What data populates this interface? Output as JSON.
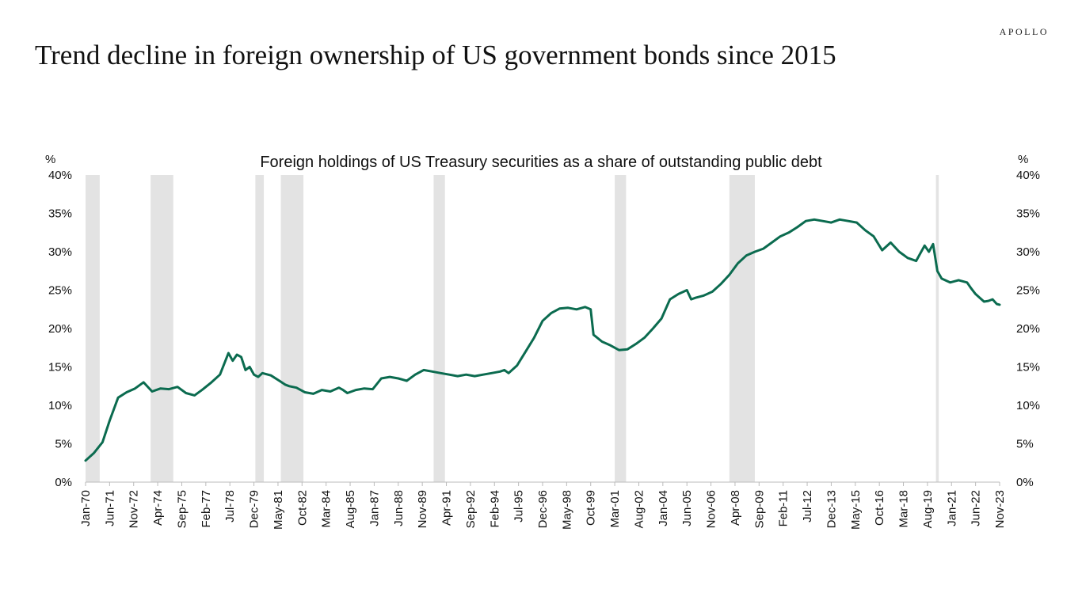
{
  "brand": "APOLLO",
  "title": "Trend decline in foreign ownership of US government bonds since 2015",
  "chart_data": {
    "type": "line",
    "title": "Foreign holdings of US Treasury securities as a share of outstanding public debt",
    "ylabel_left": "%",
    "ylabel_right": "%",
    "ylim": [
      0,
      40
    ],
    "y_ticks": [
      "0%",
      "5%",
      "10%",
      "15%",
      "20%",
      "25%",
      "30%",
      "35%",
      "40%"
    ],
    "x_range": [
      "1970-01",
      "2023-11"
    ],
    "x_ticks": [
      "Jan-70",
      "Jun-71",
      "Nov-72",
      "Apr-74",
      "Sep-75",
      "Feb-77",
      "Jul-78",
      "Dec-79",
      "May-81",
      "Oct-82",
      "Mar-84",
      "Aug-85",
      "Jan-87",
      "Jun-88",
      "Nov-89",
      "Apr-91",
      "Sep-92",
      "Feb-94",
      "Jul-95",
      "Dec-96",
      "May-98",
      "Oct-99",
      "Mar-01",
      "Aug-02",
      "Jan-04",
      "Jun-05",
      "Nov-06",
      "Apr-08",
      "Sep-09",
      "Feb-11",
      "Jul-12",
      "Dec-13",
      "May-15",
      "Oct-16",
      "Mar-18",
      "Aug-19",
      "Jan-21",
      "Jun-22",
      "Nov-23"
    ],
    "grid": false,
    "line_color": "#0b6b4f",
    "recession_color": "#e3e3e3",
    "recessions": [
      [
        "1970-01",
        "1970-11"
      ],
      [
        "1973-11",
        "1975-03"
      ],
      [
        "1980-01",
        "1980-07"
      ],
      [
        "1981-07",
        "1982-11"
      ],
      [
        "1990-07",
        "1991-03"
      ],
      [
        "2001-03",
        "2001-11"
      ],
      [
        "2007-12",
        "2009-06"
      ],
      [
        "2020-02",
        "2020-04"
      ]
    ],
    "series": [
      {
        "x": [
          "1970-01",
          "1970-07",
          "1971-01",
          "1971-06",
          "1971-12",
          "1972-06",
          "1972-12",
          "1973-06",
          "1973-12",
          "1974-06",
          "1974-12",
          "1975-06",
          "1975-12",
          "1976-06",
          "1976-12",
          "1977-06",
          "1977-12",
          "1978-06",
          "1978-09",
          "1978-12",
          "1979-03",
          "1979-06",
          "1979-09",
          "1979-12",
          "1980-03",
          "1980-06",
          "1980-12",
          "1981-06",
          "1981-10",
          "1982-01",
          "1982-06",
          "1982-12",
          "1983-06",
          "1983-12",
          "1984-06",
          "1984-12",
          "1985-03",
          "1985-06",
          "1985-12",
          "1986-06",
          "1986-12",
          "1987-06",
          "1987-12",
          "1988-06",
          "1988-12",
          "1989-06",
          "1989-12",
          "1990-06",
          "1990-12",
          "1991-06",
          "1991-12",
          "1992-06",
          "1992-12",
          "1993-06",
          "1993-12",
          "1994-06",
          "1994-09",
          "1994-12",
          "1995-06",
          "1995-12",
          "1996-06",
          "1996-12",
          "1997-06",
          "1997-12",
          "1998-06",
          "1998-12",
          "1999-06",
          "1999-10",
          "1999-12",
          "2000-06",
          "2000-12",
          "2001-06",
          "2001-12",
          "2002-06",
          "2002-12",
          "2003-06",
          "2003-12",
          "2004-06",
          "2004-12",
          "2005-06",
          "2005-09",
          "2005-12",
          "2006-06",
          "2006-12",
          "2007-06",
          "2007-12",
          "2008-06",
          "2008-12",
          "2009-06",
          "2009-12",
          "2010-06",
          "2010-12",
          "2011-06",
          "2011-12",
          "2012-06",
          "2012-12",
          "2013-06",
          "2013-12",
          "2014-06",
          "2014-12",
          "2015-06",
          "2015-12",
          "2016-06",
          "2016-12",
          "2017-06",
          "2017-12",
          "2018-06",
          "2018-12",
          "2019-06",
          "2019-09",
          "2019-12",
          "2020-03",
          "2020-06",
          "2020-12",
          "2021-06",
          "2021-12",
          "2022-03",
          "2022-06",
          "2022-09",
          "2022-12",
          "2023-03",
          "2023-06",
          "2023-09",
          "2023-11"
        ],
        "y": [
          2.8,
          3.8,
          5.2,
          8.0,
          11.0,
          11.7,
          12.2,
          13.0,
          11.8,
          12.2,
          12.1,
          12.4,
          11.6,
          11.3,
          12.1,
          13.0,
          14.0,
          16.8,
          15.8,
          16.6,
          16.3,
          14.6,
          15.0,
          14.0,
          13.7,
          14.2,
          13.9,
          13.2,
          12.7,
          12.5,
          12.3,
          11.7,
          11.5,
          12.0,
          11.8,
          12.3,
          12.0,
          11.6,
          12.0,
          12.2,
          12.1,
          13.5,
          13.7,
          13.5,
          13.2,
          14.0,
          14.6,
          14.4,
          14.2,
          14.0,
          13.8,
          14.0,
          13.8,
          14.0,
          14.2,
          14.4,
          14.6,
          14.2,
          15.2,
          17.0,
          18.8,
          21.0,
          22.0,
          22.6,
          22.7,
          22.5,
          22.8,
          22.5,
          19.2,
          18.3,
          17.8,
          17.2,
          17.3,
          18.0,
          18.8,
          20.0,
          21.3,
          23.8,
          24.5,
          25.0,
          23.8,
          24.0,
          24.3,
          24.8,
          25.8,
          27.0,
          28.5,
          29.5,
          30.0,
          30.4,
          31.2,
          32.0,
          32.5,
          33.2,
          34.0,
          34.2,
          34.0,
          33.8,
          34.2,
          34.0,
          33.8,
          32.8,
          32.0,
          30.2,
          31.2,
          30.0,
          29.2,
          28.8,
          30.8,
          30.0,
          31.0,
          27.5,
          26.5,
          26.0,
          26.3,
          26.0,
          25.2,
          24.5,
          24.0,
          23.5,
          23.6,
          23.8,
          23.2,
          23.1
        ]
      }
    ]
  }
}
